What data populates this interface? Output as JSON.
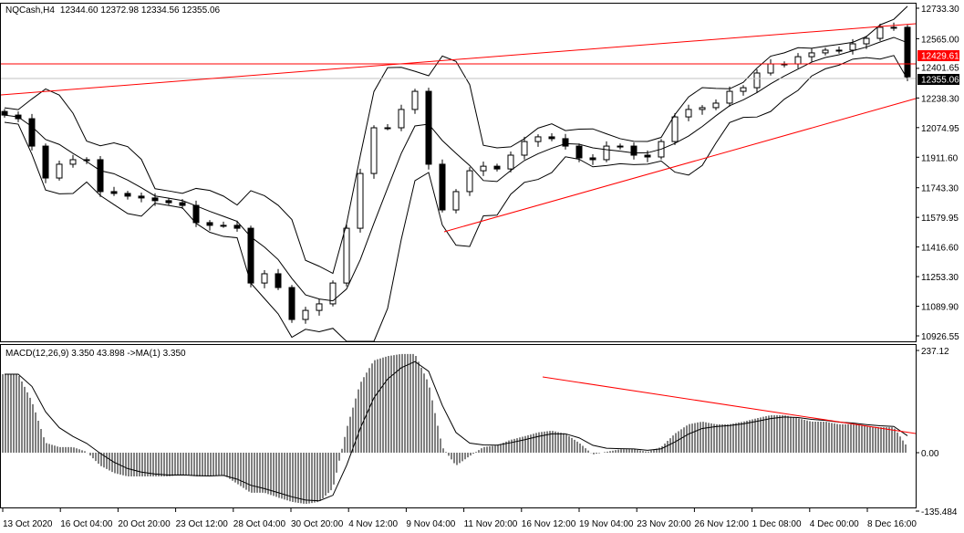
{
  "header": {
    "symbol_timeframe": "NQCash,H4",
    "ohlc": "12344.60 12372.98 12334.56 12355.06"
  },
  "macd_header": "MACD(12,26,9) 3.350 43.898  ->MA(1) 3.350",
  "price_axis": {
    "ticks": [
      "12733.30",
      "12565.00",
      "12401.65",
      "12238.30",
      "12074.95",
      "11911.60",
      "11743.30",
      "11579.95",
      "11416.60",
      "11253.30",
      "11089.90",
      "10926.55"
    ],
    "horizontal_line_label": "12429.61",
    "current_price_label": "12355.06"
  },
  "macd_axis": {
    "ticks": [
      "237.12",
      "0.00",
      "-135.484"
    ]
  },
  "time_axis": {
    "ticks": [
      "13 Oct 2020",
      "16 Oct 04:00",
      "20 Oct 20:00",
      "23 Oct 12:00",
      "28 Oct 04:00",
      "30 Oct 20:00",
      "4 Nov 12:00",
      "9 Nov 04:00",
      "11 Nov 20:00",
      "16 Nov 12:00",
      "19 Nov 04:00",
      "23 Nov 20:00",
      "26 Nov 12:00",
      "1 Dec 08:00",
      "4 Dec 00:00",
      "8 Dec 16:00"
    ]
  },
  "colors": {
    "background": "#ffffff",
    "candle": "#000000",
    "line": "#000000",
    "drawing": "#ff0000",
    "current_price_bg": "#000000",
    "hline_label_bg": "#ff0000"
  },
  "chart_data": {
    "type": "candlestick",
    "price_range": [
      10926.55,
      12733.3
    ],
    "closes": [
      12144,
      12124,
      11973,
      11797,
      11873,
      11898,
      11898,
      11722,
      11712,
      11697,
      11687,
      11672,
      11661,
      11646,
      11551,
      11536,
      11536,
      11520,
      11218,
      11269,
      11193,
      11017,
      11067,
      11103,
      11218,
      11520,
      11822,
      12074,
      12074,
      12175,
      12275,
      11873,
      11621,
      11722,
      11837,
      11862,
      11847,
      11923,
      11998,
      12024,
      12014,
      11973,
      11908,
      11898,
      11973,
      11973,
      11923,
      11913,
      11998,
      12134,
      12175,
      12185,
      12210,
      12275,
      12295,
      12376,
      12426,
      12426,
      12466,
      12487,
      12502,
      12502,
      12537,
      12567,
      12628,
      12628,
      12355.06
    ],
    "horizontal_line": 12429.61,
    "current_price": 12355.06,
    "indicator": {
      "name": "MACD(12,26,9)",
      "range": [
        -135.484,
        237.12
      ],
      "histogram": [
        182,
        182,
        119,
        23,
        13,
        13,
        2,
        -30,
        -47,
        -55,
        -55,
        -55,
        -55,
        -51,
        -55,
        -55,
        -51,
        -72,
        -93,
        -93,
        -104,
        -114,
        -119,
        -114,
        -83,
        55,
        161,
        214,
        224,
        229,
        229,
        161,
        13,
        -30,
        -8,
        13,
        17,
        30,
        38,
        47,
        51,
        44,
        23,
        -4,
        2,
        8,
        8,
        2,
        13,
        44,
        66,
        72,
        66,
        66,
        72,
        80,
        87,
        87,
        80,
        72,
        72,
        66,
        66,
        61,
        59,
        59,
        13
      ]
    }
  }
}
